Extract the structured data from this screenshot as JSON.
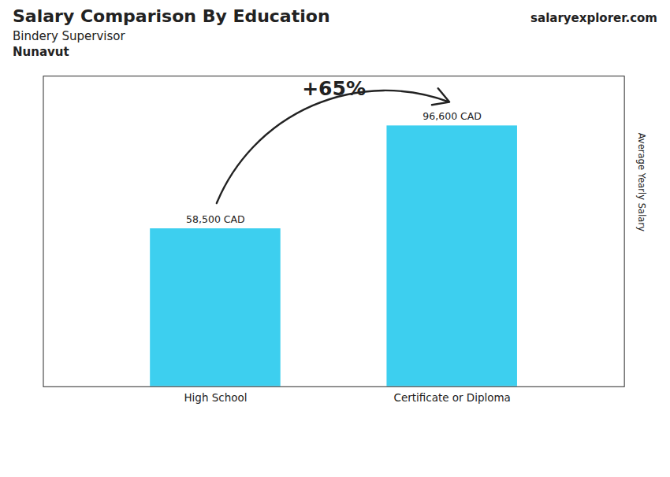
{
  "chart_data": {
    "type": "bar",
    "title": "Salary Comparison By Education",
    "subtitle": "Bindery Supervisor",
    "annotations": [
      {
        "text": "Nunavut"
      },
      {
        "text": "salaryexplorer.com"
      },
      {
        "text": "+65%",
        "from": "High School",
        "to": "Certificate or Diploma"
      }
    ],
    "categories": [
      "High School",
      "Certificate or Diploma"
    ],
    "values": [
      58500,
      96600
    ],
    "value_labels": [
      "58,500 CAD",
      "96,600 CAD"
    ],
    "data_labels": true,
    "color": "#3dcfef",
    "ylabel": "Average Yearly Salary",
    "ylim": [
      0,
      115000
    ],
    "tick_labels": "x"
  }
}
